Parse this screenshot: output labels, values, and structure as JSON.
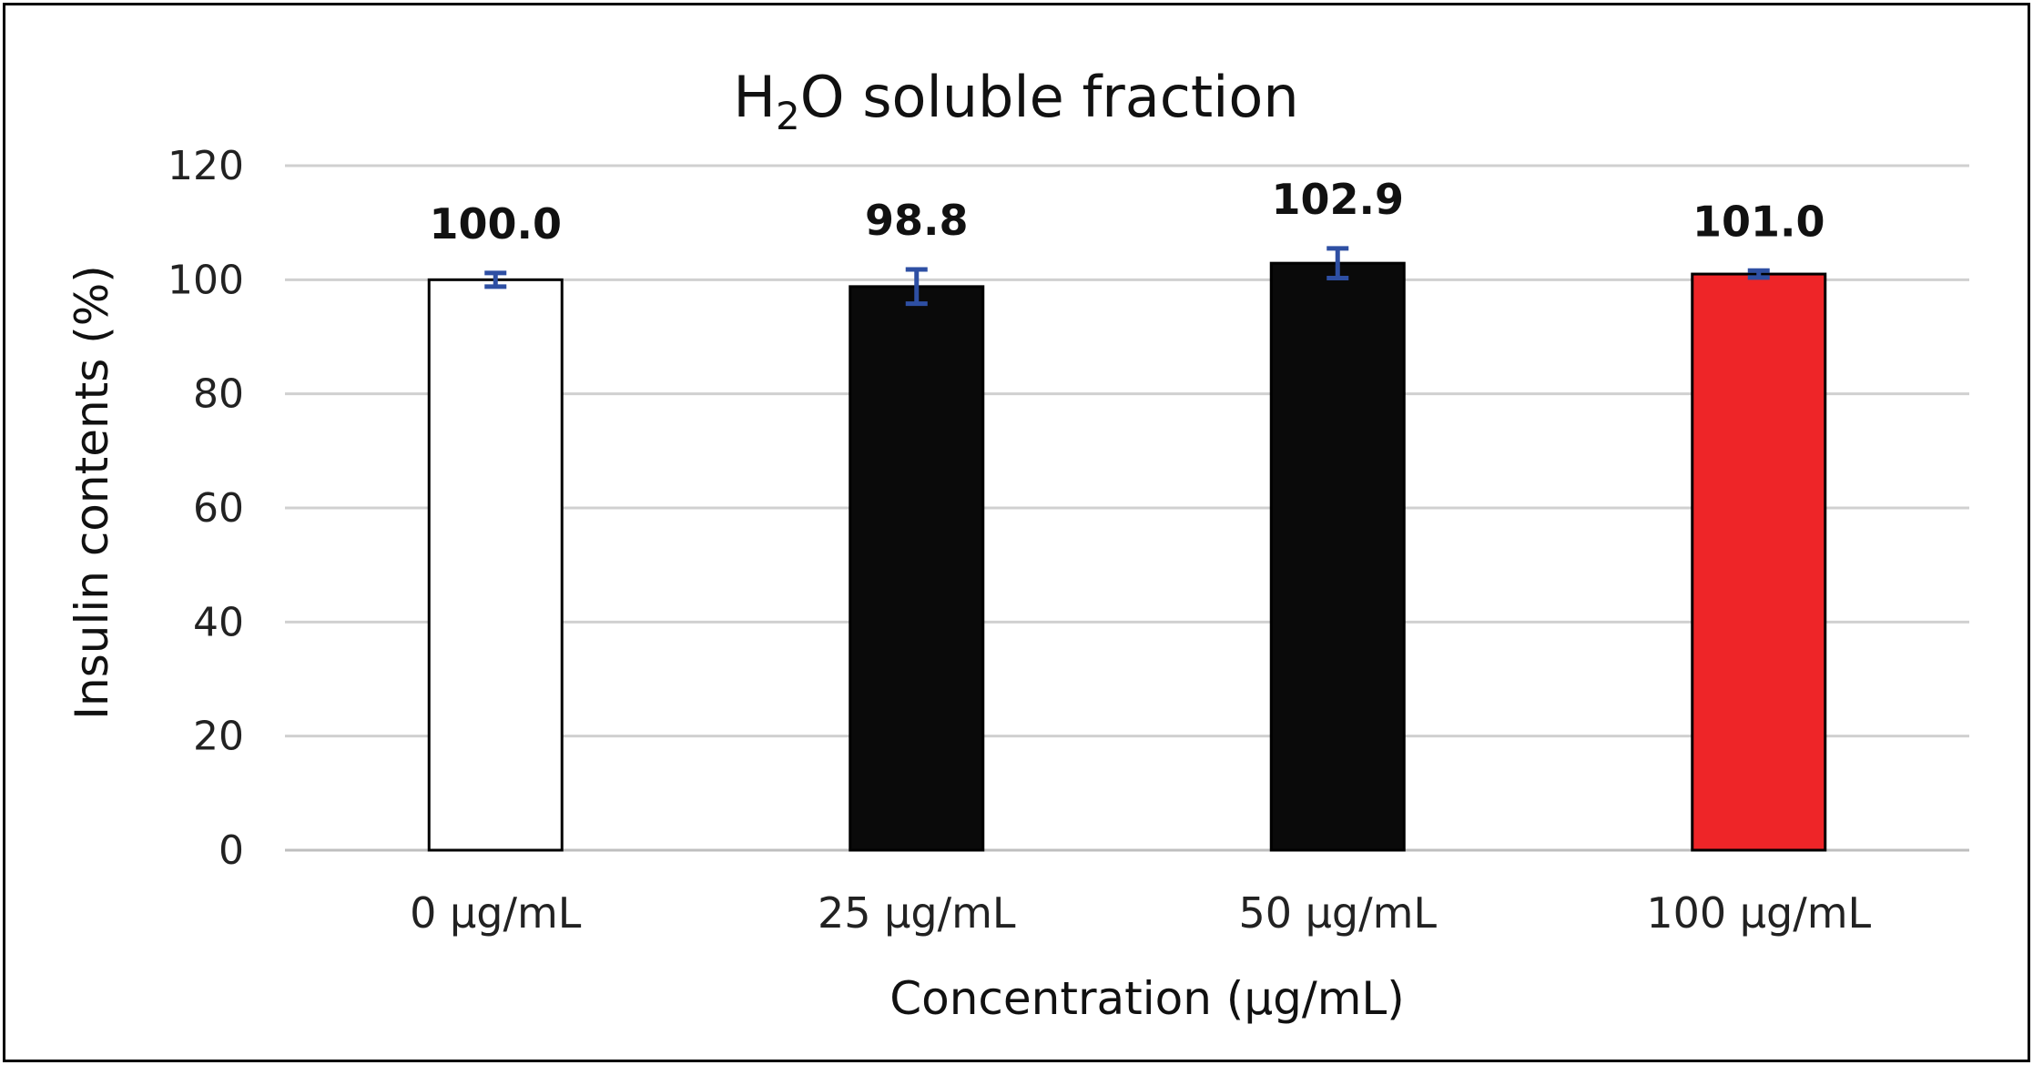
{
  "chart_data": {
    "type": "bar",
    "title": "H2O soluble fraction",
    "title_parts": {
      "pre": "H",
      "sub": "2",
      "post": "O soluble fraction"
    },
    "xlabel": "Concentration (µg/mL)",
    "ylabel": "Insulin contents (%)",
    "categories": [
      "0 µg/mL",
      "25 µg/mL",
      "50 µg/mL",
      "100 µg/mL"
    ],
    "values": [
      100.0,
      98.8,
      102.9,
      101.0
    ],
    "value_labels": [
      "100.0",
      "98.8",
      "102.9",
      "101.0"
    ],
    "error": [
      1.2,
      3.0,
      2.6,
      0.6
    ],
    "bar_colors": [
      "#ffffff",
      "#0a0a0a",
      "#0a0a0a",
      "#ee2528"
    ],
    "error_color": "#2e4fa3",
    "ylim": [
      0,
      120
    ],
    "yticks": [
      "0",
      "20",
      "40",
      "60",
      "80",
      "100",
      "120"
    ],
    "ytick_values": [
      0,
      20,
      40,
      60,
      80,
      100,
      120
    ],
    "grid": true,
    "legend": "none"
  }
}
